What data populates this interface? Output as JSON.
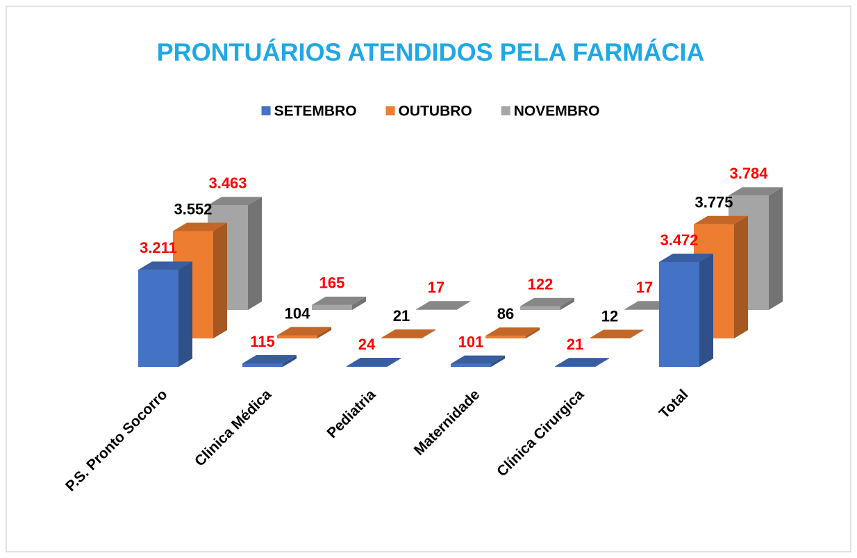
{
  "chart_data": {
    "type": "bar3d",
    "title": "PRONTUÁRIOS ATENDIDOS PELA FARMÁCIA",
    "categories": [
      "P.S. Pronto Socorro",
      "Clinica Médica",
      "Pediatria",
      "Maternidade",
      "Clínica Cirurgica",
      "Total"
    ],
    "series": [
      {
        "name": "SETEMBRO",
        "color": "#4472c4",
        "label_color": "#ff0000",
        "values": [
          3211,
          115,
          24,
          101,
          21,
          3472
        ],
        "value_labels": [
          "3.211",
          "115",
          "24",
          "101",
          "21",
          "3.472"
        ]
      },
      {
        "name": "OUTUBRO",
        "color": "#ed7d31",
        "label_color": "#000000",
        "values": [
          3552,
          104,
          21,
          86,
          12,
          3775
        ],
        "value_labels": [
          "3.552",
          "104",
          "21",
          "86",
          "12",
          "3.775"
        ]
      },
      {
        "name": "NOVEMBRO",
        "color": "#a5a5a5",
        "label_color": "#ff0000",
        "values": [
          3463,
          165,
          17,
          122,
          17,
          3784
        ],
        "value_labels": [
          "3.463",
          "165",
          "17",
          "122",
          "17",
          "3.784"
        ]
      }
    ],
    "legend": "top"
  }
}
